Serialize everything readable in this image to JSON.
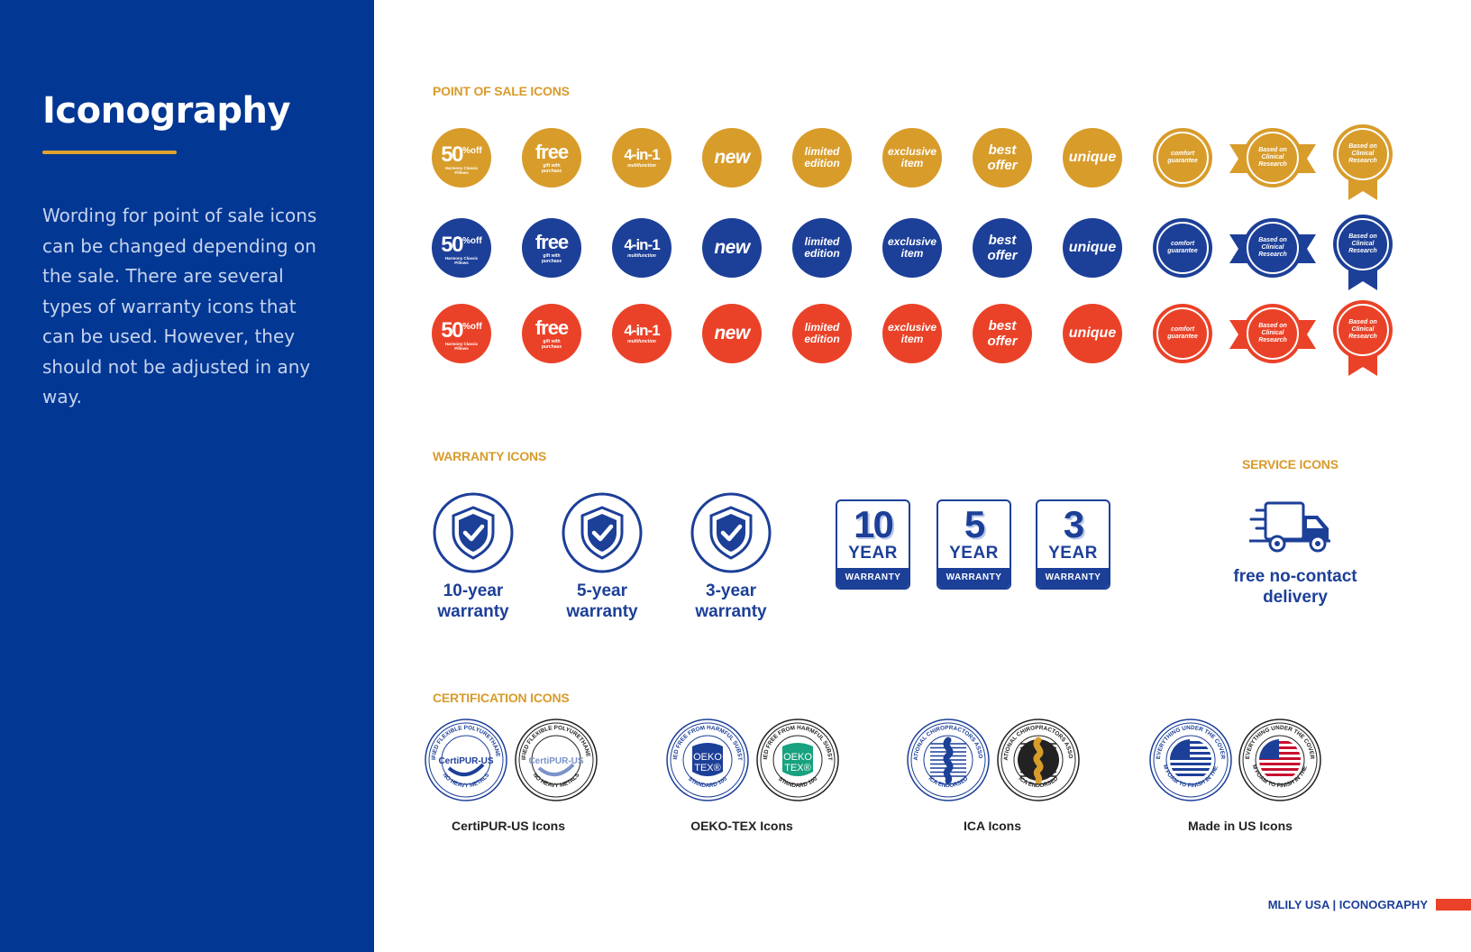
{
  "sidebar": {
    "title": "Iconography",
    "body": "Wording for point of sale icons can be changed depending on the sale. There are several types of warranty icons that can be used. However, they should not be adjusted in any way."
  },
  "colors": {
    "blue": "#023793",
    "gold": "#d89c2b",
    "navy": "#1c3f98",
    "red": "#ea4228"
  },
  "pos": {
    "heading": "POINT OF SALE ICONS",
    "pct": {
      "big": "50",
      "sup_top": "%",
      "sup_bot": "off",
      "small": "Harmony Classic Pillows"
    },
    "free": {
      "big": "free",
      "small": "gift with purchase"
    },
    "four": {
      "big": "4-in-1",
      "small": "multifunction"
    },
    "new": "new",
    "limited": {
      "l1": "limited",
      "l2": "edition"
    },
    "exclusive": {
      "l1": "exclusive",
      "l2": "item"
    },
    "best": {
      "l1": "best",
      "l2": "offer"
    },
    "unique": "unique",
    "comfort": {
      "l1": "comfort",
      "l2": "guarantee"
    },
    "research": {
      "l1": "Based on",
      "l2": "Clinical",
      "l3": "Research"
    }
  },
  "warranty": {
    "heading": "WARRANTY ICONS",
    "shields": [
      {
        "l1": "10-year",
        "l2": "warranty"
      },
      {
        "l1": "5-year",
        "l2": "warranty"
      },
      {
        "l1": "3-year",
        "l2": "warranty"
      }
    ],
    "boxes": [
      {
        "num": "10",
        "year": "YEAR",
        "label": "WARRANTY"
      },
      {
        "num": "5",
        "year": "YEAR",
        "label": "WARRANTY"
      },
      {
        "num": "3",
        "year": "YEAR",
        "label": "WARRANTY"
      }
    ]
  },
  "service": {
    "heading": "SERVICE ICONS",
    "icon": "delivery-truck-icon",
    "l1": "free no-contact",
    "l2": "delivery"
  },
  "certification": {
    "heading": "CERTIFICATION ICONS",
    "groups": [
      {
        "caption": "CertiPUR-US Icons",
        "badge_text": "CertiPUR-US",
        "ring_top": "CERTIFIED FLEXIBLE POLYURETHANE FOAM",
        "ring_bottom": "NO HEAVY METALS"
      },
      {
        "caption": "OEKO-TEX Icons",
        "badge_l1": "OEKO",
        "badge_l2": "TEX®",
        "ring_top": "CERTIFIED FREE FROM HARMFUL SUBSTANCES",
        "ring_bottom": "STANDARD 100"
      },
      {
        "caption": "ICA Icons",
        "ring_top": "INTERNATIONAL CHIROPRACTORS ASSOCIATION",
        "ring_bottom": "ICA ENDORSED"
      },
      {
        "caption": "Made in US Icons",
        "ring_top": "EVERYTHING UNDER THE COVER",
        "ring_bottom": "FROM FOAM TO FINISH IN THE USA"
      }
    ]
  },
  "footer": {
    "brand": "MLILY USA",
    "sep": "|",
    "section": "ICONOGRAPHY"
  }
}
